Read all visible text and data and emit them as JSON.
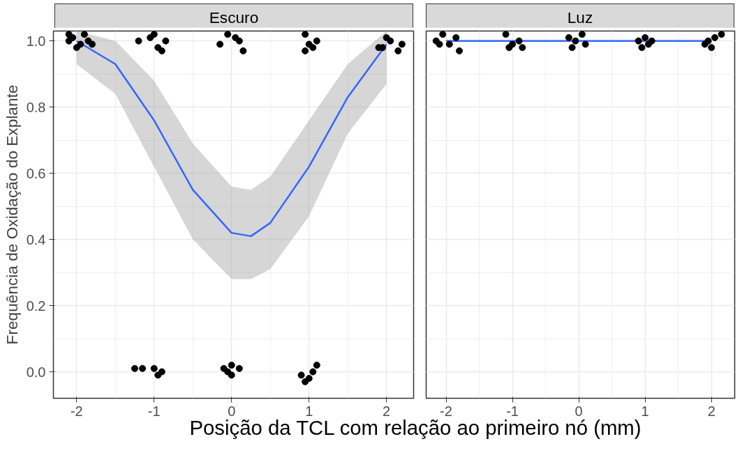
{
  "chart_data": [
    {
      "type": "scatter",
      "title": "Escuro",
      "ylabel": "Frequência de Oxidação do Explante",
      "xlabel": "Posição da TCL com relação ao primeiro nó (mm)",
      "xlim": [
        -2.3,
        2.35
      ],
      "ylim": [
        -0.08,
        1.03
      ],
      "xticks": [
        -2,
        -1,
        0,
        1,
        2
      ],
      "yticks": [
        {
          "value": 0,
          "label": "0.0"
        },
        0.2,
        0.4,
        0.6,
        0.8,
        {
          "value": 1,
          "label": "1.0"
        }
      ],
      "grid": true,
      "series": [
        {
          "type": "scatter",
          "marker": "circle",
          "color": "#000000",
          "x": [
            -2.1,
            -2.05,
            -1.95,
            -1.85,
            -2.0,
            -1.9,
            -1.8,
            -2.1,
            -1.2,
            -1.05,
            -0.95,
            -0.85,
            -1.0,
            -0.9,
            -0.15,
            -0.05,
            0.1,
            0.15,
            0.05,
            0.95,
            1.0,
            1.1,
            0.95,
            1.05,
            1.95,
            2.05,
            2.15,
            2.0,
            2.2,
            1.9,
            -1.25,
            -1.15,
            -1.0,
            -0.95,
            -0.9,
            -0.1,
            0.0,
            0.1,
            0.0,
            -0.05,
            0.9,
            1.0,
            1.1,
            1.05,
            0.95
          ],
          "values": [
            1.0,
            1.01,
            0.99,
            1.0,
            0.98,
            1.02,
            0.99,
            1.02,
            1.0,
            1.01,
            0.98,
            1.0,
            1.02,
            0.97,
            0.99,
            1.02,
            1.0,
            0.97,
            1.01,
            1.02,
            0.99,
            1.0,
            0.97,
            0.98,
            0.98,
            1.0,
            0.97,
            1.01,
            0.99,
            0.98,
            0.01,
            0.01,
            0.01,
            -0.01,
            0.0,
            0.01,
            0.02,
            0.01,
            -0.01,
            0.0,
            -0.01,
            -0.02,
            0.02,
            0.0,
            -0.03
          ]
        },
        {
          "type": "line",
          "color": "#3366ff",
          "x": [
            -2,
            -1.5,
            -1,
            -0.5,
            0,
            0.25,
            0.5,
            1,
            1.5,
            2
          ],
          "values": [
            1.0,
            0.93,
            0.76,
            0.55,
            0.42,
            0.41,
            0.45,
            0.62,
            0.83,
            0.99
          ],
          "lower": [
            0.93,
            0.84,
            0.62,
            0.4,
            0.28,
            0.28,
            0.31,
            0.47,
            0.72,
            0.87
          ],
          "upper": [
            1.03,
            1.0,
            0.88,
            0.69,
            0.56,
            0.55,
            0.59,
            0.76,
            0.93,
            1.03
          ]
        }
      ]
    },
    {
      "type": "scatter",
      "title": "Luz",
      "xlim": [
        -2.3,
        2.35
      ],
      "ylim": [
        -0.08,
        1.03
      ],
      "xticks": [
        -2,
        -1,
        0,
        1,
        2
      ],
      "yticks": [
        0,
        0.2,
        0.4,
        0.6,
        0.8,
        1
      ],
      "grid": true,
      "tick_labels": "x",
      "series": [
        {
          "type": "scatter",
          "marker": "circle",
          "color": "#000000",
          "x": [
            -2.15,
            -2.05,
            -1.95,
            -1.85,
            -2.1,
            -1.8,
            -1.1,
            -1.0,
            -0.9,
            -0.85,
            -1.05,
            -0.15,
            -0.05,
            0.05,
            0.1,
            -0.1,
            0.9,
            1.0,
            1.1,
            0.95,
            1.05,
            1.95,
            2.05,
            2.15,
            2.0,
            1.9
          ],
          "values": [
            1.0,
            1.02,
            0.99,
            1.01,
            0.99,
            0.97,
            1.02,
            0.99,
            1.0,
            0.98,
            0.98,
            1.01,
            1.0,
            1.02,
            0.99,
            0.98,
            1.0,
            1.01,
            1.0,
            0.98,
            0.99,
            1.0,
            1.01,
            1.02,
            0.98,
            0.99
          ]
        },
        {
          "type": "line",
          "color": "#3366ff",
          "x": [
            -2,
            2
          ],
          "values": [
            1.0,
            1.0
          ]
        }
      ]
    }
  ]
}
